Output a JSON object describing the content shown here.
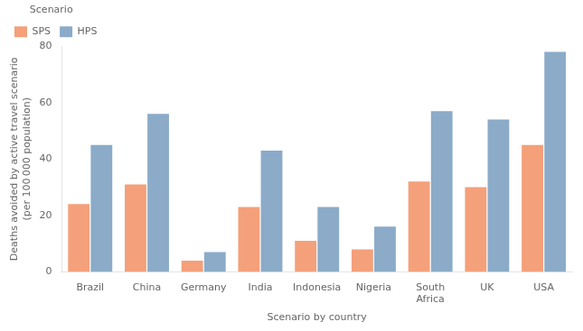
{
  "chart_data": {
    "type": "bar",
    "categories": [
      "Brazil",
      "China",
      "Germany",
      "India",
      "Indonesia",
      "Nigeria",
      "South\nAfrica",
      "UK",
      "USA"
    ],
    "series": [
      {
        "name": "SPS",
        "color": "#F4A07A",
        "values": [
          24,
          31,
          4,
          23,
          11,
          8,
          32,
          30,
          45
        ]
      },
      {
        "name": "HPS",
        "color": "#8BABC8",
        "values": [
          45,
          56,
          7,
          43,
          23,
          16,
          57,
          54,
          78
        ]
      }
    ],
    "xlabel": "Scenario by country",
    "ylabel": "Deaths avoided by active travel scenario\n(per 100 000 population)",
    "ylim": [
      0,
      80
    ],
    "yticks": [
      0,
      20,
      40,
      60,
      80
    ],
    "grid": false,
    "legend": "upper left",
    "legend_title": "Scenario"
  }
}
